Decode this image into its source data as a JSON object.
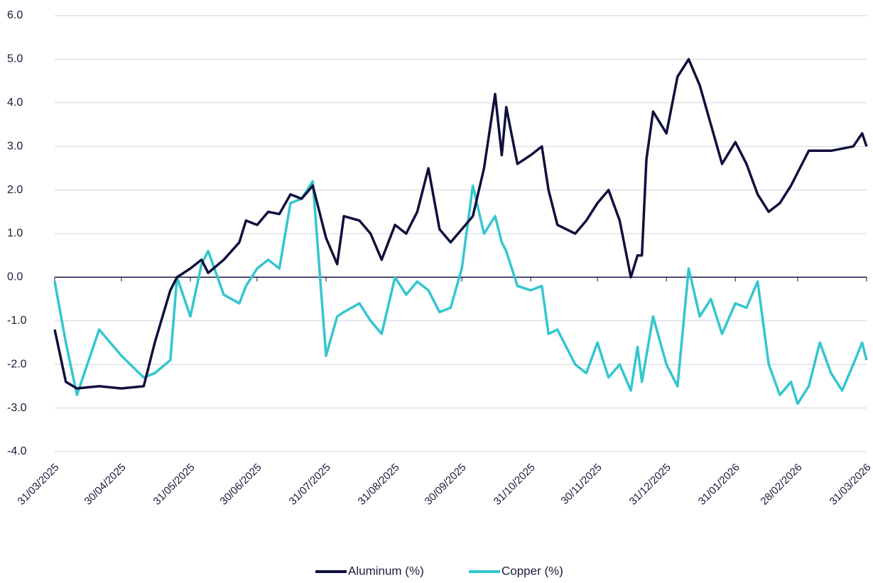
{
  "chart_data": {
    "type": "line",
    "x": [
      "31/03/2025",
      "05/04/2025",
      "10/04/2025",
      "20/04/2025",
      "30/04/2025",
      "10/05/2025",
      "15/05/2025",
      "22/05/2025",
      "25/05/2025",
      "31/05/2025",
      "05/06/2025",
      "08/06/2025",
      "15/06/2025",
      "22/06/2025",
      "25/06/2025",
      "30/06/2025",
      "05/07/2025",
      "10/07/2025",
      "15/07/2025",
      "20/07/2025",
      "25/07/2025",
      "31/07/2025",
      "05/08/2025",
      "08/08/2025",
      "15/08/2025",
      "20/08/2025",
      "25/08/2025",
      "31/08/2025",
      "05/09/2025",
      "10/09/2025",
      "15/09/2025",
      "20/09/2025",
      "25/09/2025",
      "30/09/2025",
      "05/10/2025",
      "10/10/2025",
      "15/10/2025",
      "18/10/2025",
      "20/10/2025",
      "25/10/2025",
      "31/10/2025",
      "05/11/2025",
      "08/11/2025",
      "12/11/2025",
      "20/11/2025",
      "25/11/2025",
      "30/11/2025",
      "05/12/2025",
      "10/12/2025",
      "15/12/2025",
      "18/12/2025",
      "20/12/2025",
      "22/12/2025",
      "25/12/2025",
      "31/12/2025",
      "05/01/2026",
      "10/01/2026",
      "15/01/2026",
      "20/01/2026",
      "25/01/2026",
      "31/01/2026",
      "05/02/2026",
      "10/02/2026",
      "15/02/2026",
      "20/02/2026",
      "25/02/2026",
      "28/02/2026",
      "05/03/2026",
      "10/03/2026",
      "15/03/2026",
      "20/03/2026",
      "25/03/2026",
      "29/03/2026",
      "31/03/2026"
    ],
    "series": [
      {
        "name": "Aluminum (%)",
        "color": "#10103e",
        "values": [
          -1.2,
          -2.4,
          -2.55,
          -2.5,
          -2.55,
          -2.5,
          -1.5,
          -0.3,
          0.0,
          0.2,
          0.4,
          0.1,
          0.4,
          0.8,
          1.3,
          1.2,
          1.5,
          1.45,
          1.9,
          1.8,
          2.1,
          0.9,
          0.3,
          1.4,
          1.3,
          1.0,
          0.4,
          1.2,
          1.0,
          1.5,
          2.5,
          1.1,
          0.8,
          1.1,
          1.4,
          2.5,
          4.2,
          2.8,
          3.9,
          2.6,
          2.8,
          3.0,
          2.0,
          1.2,
          1.0,
          1.3,
          1.7,
          2.0,
          1.3,
          0.0,
          0.5,
          0.5,
          2.7,
          3.8,
          3.3,
          4.6,
          5.0,
          4.4,
          3.5,
          2.6,
          3.1,
          2.6,
          1.9,
          1.5,
          1.7,
          2.1,
          2.4,
          2.9,
          2.9,
          2.9,
          2.95,
          3.0,
          3.3,
          3.0
        ]
      },
      {
        "name": "Copper (%)",
        "color": "#33c6cf",
        "values": [
          -0.1,
          -1.5,
          -2.7,
          -1.2,
          -1.8,
          -2.3,
          -2.2,
          -1.9,
          0.0,
          -0.9,
          0.3,
          0.6,
          -0.4,
          -0.6,
          -0.2,
          0.2,
          0.4,
          0.2,
          1.7,
          1.8,
          2.2,
          -1.8,
          -0.9,
          -0.8,
          -0.6,
          -1.0,
          -1.3,
          0.0,
          -0.4,
          -0.1,
          -0.3,
          -0.8,
          -0.7,
          0.2,
          2.1,
          1.0,
          1.4,
          0.8,
          0.6,
          -0.2,
          -0.3,
          -0.2,
          -1.3,
          -1.2,
          -2.0,
          -2.2,
          -1.5,
          -2.3,
          -2.0,
          -2.6,
          -1.6,
          -2.4,
          -1.8,
          -0.9,
          -2.0,
          -2.5,
          0.2,
          -0.9,
          -0.5,
          -1.3,
          -0.6,
          -0.7,
          -0.1,
          -2.0,
          -2.7,
          -2.4,
          -2.9,
          -2.5,
          -1.5,
          -2.2,
          -2.6,
          -2.0,
          -1.5,
          -1.9
        ]
      }
    ],
    "xlim": [
      "31/03/2025",
      "31/03/2026"
    ],
    "xticks": [
      "31/03/2025",
      "30/04/2025",
      "31/05/2025",
      "30/06/2025",
      "31/07/2025",
      "31/08/2025",
      "30/09/2025",
      "31/10/2025",
      "30/11/2025",
      "31/12/2025",
      "31/01/2026",
      "28/02/2026",
      "31/03/2026"
    ],
    "ylim": [
      -4,
      6
    ],
    "yticks": [
      {
        "value": 6,
        "label": "6.0"
      },
      {
        "value": 5,
        "label": "5.0"
      },
      {
        "value": 4,
        "label": "4.0"
      },
      {
        "value": 3,
        "label": "3.0"
      },
      {
        "value": 2,
        "label": "2.0"
      },
      {
        "value": 1,
        "label": "1.0"
      },
      {
        "value": 0,
        "label": "0.0"
      },
      {
        "value": -1,
        "label": "-1.0"
      },
      {
        "value": -2,
        "label": "-2.0"
      },
      {
        "value": -3,
        "label": "-3.0"
      },
      {
        "value": -4,
        "label": "-4.0"
      }
    ],
    "grid": true,
    "legend": "bottom"
  }
}
